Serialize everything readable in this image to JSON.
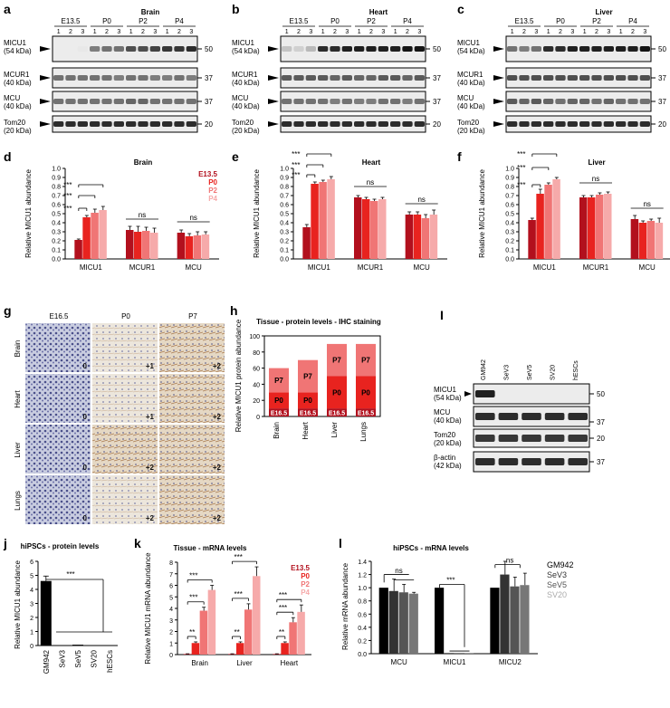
{
  "panels": {
    "a": {
      "letter": "a",
      "title": "Brain"
    },
    "b": {
      "letter": "b",
      "title": "Heart"
    },
    "c": {
      "letter": "c",
      "title": "Liver"
    }
  },
  "blot_abc": {
    "stages": [
      "E13.5",
      "P0",
      "P2",
      "P4"
    ],
    "lanes": [
      "1",
      "2",
      "3",
      "1",
      "2",
      "3",
      "1",
      "2",
      "3",
      "1",
      "2",
      "3"
    ],
    "rows": [
      {
        "name": "MICU1",
        "sub": "(54 kDa)",
        "mw": "50"
      },
      {
        "name": "MCUR1",
        "sub": "(40 kDa)",
        "mw": "37"
      },
      {
        "name": "MCU",
        "sub": "(40 kDa)",
        "mw": "37"
      },
      {
        "name": "Tom20",
        "sub": "(20 kDa)",
        "mw": "20"
      }
    ]
  },
  "def": {
    "letters": [
      "d",
      "e",
      "f"
    ],
    "titles": [
      "Brain",
      "Heart",
      "Liver"
    ],
    "ylabel": "Relative MICU1 abundance",
    "yticks": [
      "0.0",
      "0.1",
      "0.2",
      "0.3",
      "0.4",
      "0.5",
      "0.6",
      "0.7",
      "0.8",
      "0.9",
      "1.0"
    ],
    "groups": [
      "MICU1",
      "MCUR1",
      "MCU"
    ],
    "legend": [
      "E13.5",
      "P0",
      "P2",
      "P4"
    ],
    "ns": "ns",
    "sig": "***"
  },
  "g": {
    "letter": "g",
    "cols": [
      "E16.5",
      "P0",
      "P7"
    ],
    "rows": [
      "Brain",
      "Heart",
      "Liver",
      "Lungs"
    ],
    "scores": [
      [
        "0",
        "+1",
        "+2"
      ],
      [
        "0",
        "+1",
        "+2"
      ],
      [
        "0",
        "+2",
        "+2"
      ],
      [
        "0",
        "+2",
        "+2"
      ]
    ]
  },
  "h": {
    "letter": "h",
    "title": "Tissue - protein levels - IHC staining",
    "ylabel": "Relative MICU1 protein abundance",
    "yticks": [
      "0",
      "20",
      "40",
      "60",
      "80",
      "100"
    ],
    "seg_labels": [
      "E16.5",
      "P0",
      "P7"
    ],
    "cats": [
      "Brain",
      "Heart",
      "Liver",
      "Lungs"
    ]
  },
  "i": {
    "letter": "I",
    "lanes": [
      "GM942",
      "SeV3",
      "SeV5",
      "SV20",
      "hESCs"
    ],
    "rows": [
      {
        "name": "MICU1",
        "sub": "(54 kDa)",
        "mw": "50"
      },
      {
        "name": "MCU",
        "sub": "(40 kDa)",
        "mw": "37"
      },
      {
        "name": "Tom20",
        "sub": "(20 kDa)",
        "mw": "20"
      },
      {
        "name": "β-actin",
        "sub": "(42 kDa)",
        "mw": "37"
      }
    ]
  },
  "j": {
    "letter": "j",
    "title": "hiPSCs - protein levels",
    "ylabel": "Relative MICU1 abundance",
    "yticks": [
      "0",
      "1",
      "2",
      "3",
      "4",
      "5",
      "6"
    ],
    "cats": [
      "GM942",
      "SeV3",
      "SeV5",
      "SV20",
      "hESCs"
    ],
    "sig": "***"
  },
  "k": {
    "letter": "k",
    "title": "Tissue - mRNA levels",
    "ylabel": "Relative MICU1 mRNA abundance",
    "yticks": [
      "0",
      "1",
      "2",
      "3",
      "4",
      "5",
      "6",
      "7",
      "8"
    ],
    "cats": [
      "Brain",
      "Liver",
      "Heart"
    ],
    "legend": [
      "E13.5",
      "P0",
      "P2",
      "P4"
    ],
    "sig2": "**",
    "sig3": "***"
  },
  "l": {
    "letter": "l",
    "title": "hiPSCs - mRNA levels",
    "ylabel": "Relative mRNA abundance",
    "yticks": [
      "0.0",
      "0.2",
      "0.4",
      "0.6",
      "0.8",
      "1.0",
      "1.2",
      "1.4"
    ],
    "cats": [
      "MCU",
      "MICU1",
      "MICU2"
    ],
    "legend": [
      "GM942",
      "SeV3",
      "SeV5",
      "SV20"
    ],
    "ns": "ns",
    "sig": "***"
  },
  "colors": {
    "e135": "#b2101d",
    "p0": "#e8231f",
    "p2": "#f07575",
    "p4": "#f6aaaa",
    "legend_sv20": "#aaaaaa"
  },
  "chart_data": [
    {
      "type": "bar",
      "panel": "d",
      "title": "Brain",
      "ylabel": "Relative MICU1 abundance",
      "ylim": [
        0,
        1.0
      ],
      "categories": [
        "MICU1",
        "MCUR1",
        "MCU"
      ],
      "series": [
        {
          "name": "E13.5",
          "values": [
            0.21,
            0.32,
            0.29
          ]
        },
        {
          "name": "P0",
          "values": [
            0.46,
            0.3,
            0.25
          ]
        },
        {
          "name": "P2",
          "values": [
            0.51,
            0.31,
            0.26
          ]
        },
        {
          "name": "P4",
          "values": [
            0.54,
            0.29,
            0.27
          ]
        }
      ]
    },
    {
      "type": "bar",
      "panel": "e",
      "title": "Heart",
      "ylabel": "Relative MICU1 abundance",
      "ylim": [
        0,
        1.0
      ],
      "categories": [
        "MICU1",
        "MCUR1",
        "MCU"
      ],
      "series": [
        {
          "name": "E13.5",
          "values": [
            0.35,
            0.68,
            0.49
          ]
        },
        {
          "name": "P0",
          "values": [
            0.83,
            0.66,
            0.49
          ]
        },
        {
          "name": "P2",
          "values": [
            0.85,
            0.64,
            0.45
          ]
        },
        {
          "name": "P4",
          "values": [
            0.88,
            0.66,
            0.49
          ]
        }
      ]
    },
    {
      "type": "bar",
      "panel": "f",
      "title": "Liver",
      "ylabel": "Relative MICU1 abundance",
      "ylim": [
        0,
        1.0
      ],
      "categories": [
        "MICU1",
        "MCUR1",
        "MCU"
      ],
      "series": [
        {
          "name": "E13.5",
          "values": [
            0.43,
            0.68,
            0.44
          ]
        },
        {
          "name": "P0",
          "values": [
            0.72,
            0.68,
            0.4
          ]
        },
        {
          "name": "P2",
          "values": [
            0.82,
            0.71,
            0.42
          ]
        },
        {
          "name": "P4",
          "values": [
            0.88,
            0.72,
            0.4
          ]
        }
      ]
    },
    {
      "type": "bar",
      "panel": "h",
      "title": "Tissue - protein levels - IHC staining",
      "ylim": [
        0,
        100
      ],
      "categories": [
        "Brain",
        "Heart",
        "Liver",
        "Lungs"
      ],
      "series": [
        {
          "name": "E16.5",
          "values": [
            10,
            10,
            10,
            10
          ]
        },
        {
          "name": "P0",
          "values": [
            20,
            20,
            40,
            40
          ]
        },
        {
          "name": "P7",
          "values": [
            30,
            40,
            40,
            40
          ]
        }
      ]
    },
    {
      "type": "bar",
      "panel": "j",
      "title": "hiPSCs - protein levels",
      "ylim": [
        0,
        6
      ],
      "categories": [
        "GM942",
        "SeV3",
        "SeV5",
        "SV20",
        "hESCs"
      ],
      "values": [
        4.6,
        0.03,
        0.06,
        0.02,
        0.01
      ]
    },
    {
      "type": "bar",
      "panel": "k",
      "title": "Tissue - mRNA levels",
      "ylim": [
        0,
        8
      ],
      "categories": [
        "Brain",
        "Liver",
        "Heart"
      ],
      "series": [
        {
          "name": "E13.5",
          "values": [
            0.05,
            0.05,
            0.05
          ]
        },
        {
          "name": "P0",
          "values": [
            1.0,
            1.0,
            1.0
          ]
        },
        {
          "name": "P2",
          "values": [
            3.8,
            3.9,
            2.8
          ]
        },
        {
          "name": "P4",
          "values": [
            5.6,
            6.8,
            3.7
          ]
        }
      ]
    },
    {
      "type": "bar",
      "panel": "l",
      "title": "hiPSCs - mRNA levels",
      "ylim": [
        0,
        1.4
      ],
      "categories": [
        "MCU",
        "MICU1",
        "MICU2"
      ],
      "series": [
        {
          "name": "GM942",
          "values": [
            1.0,
            1.0,
            1.0
          ]
        },
        {
          "name": "SeV3",
          "values": [
            0.95,
            0.01,
            1.2
          ]
        },
        {
          "name": "SeV5",
          "values": [
            0.93,
            0.01,
            1.02
          ]
        },
        {
          "name": "SV20",
          "values": [
            0.91,
            0.01,
            1.04
          ]
        }
      ]
    }
  ]
}
